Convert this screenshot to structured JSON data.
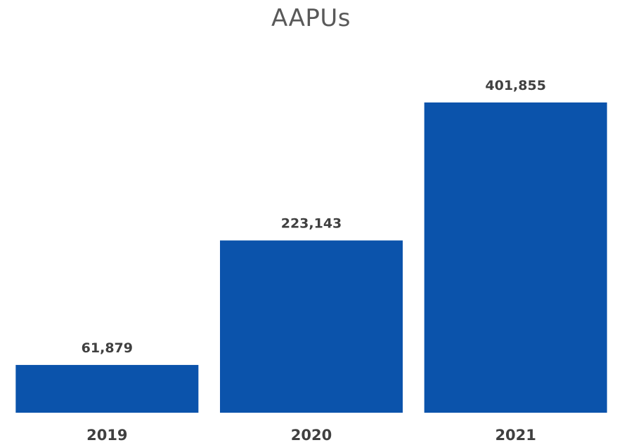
{
  "chart_data": {
    "type": "bar",
    "title": "AAPUs",
    "xlabel": "",
    "ylabel": "",
    "categories": [
      "2019",
      "2020",
      "2021"
    ],
    "values": [
      61879,
      223143,
      401855
    ],
    "value_labels": [
      "61,879",
      "223,143",
      "401,855"
    ],
    "ylim": [
      0,
      401855
    ],
    "grid": false,
    "legend": "none",
    "bar_color": "#0B53AB"
  }
}
